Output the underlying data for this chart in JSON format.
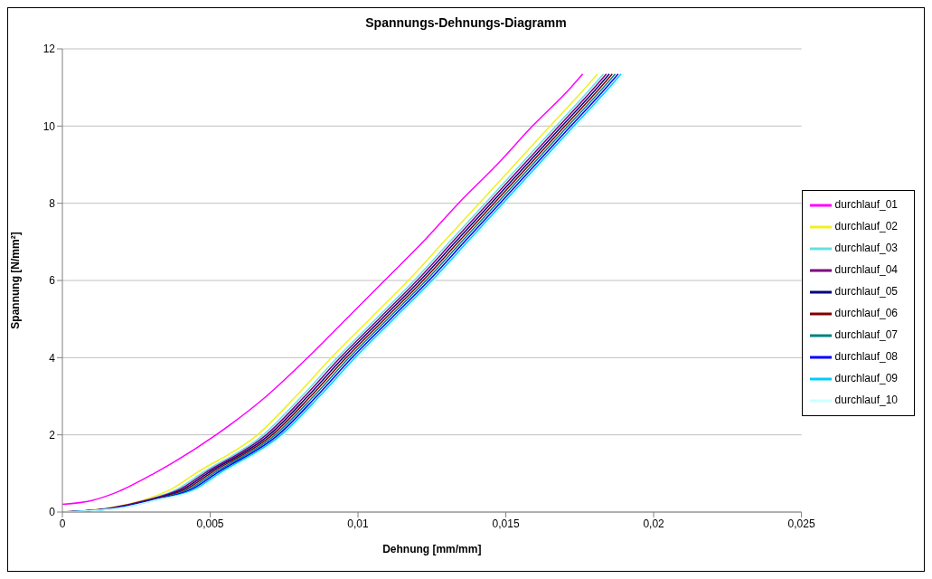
{
  "chart_data": {
    "type": "line",
    "title": "Spannungs-Dehnungs-Diagramm",
    "xlabel": "Dehnung [mm/mm]",
    "ylabel": "Spannung [N/mm²]",
    "xlim": [
      0,
      0.025
    ],
    "xticks": [
      0,
      {
        "value": 0.005,
        "label": "0,005"
      },
      {
        "value": 0.01,
        "label": "0,01"
      },
      {
        "value": 0.015,
        "label": "0,015"
      },
      {
        "value": 0.02,
        "label": "0,02"
      },
      {
        "value": 0.025,
        "label": "0,025"
      }
    ],
    "ylim": [
      0,
      12
    ],
    "yticks": [
      0,
      2,
      4,
      6,
      8,
      10,
      12
    ],
    "grid": "y",
    "legend": "right",
    "marker": "none",
    "line_style": "solid",
    "series": [
      {
        "name": "durchlauf_01",
        "color": "#ff00ff",
        "x": [
          0,
          0.001,
          0.0018,
          0.0031,
          0.0052,
          0.0069,
          0.0083,
          0.0096,
          0.0109,
          0.0122,
          0.0134,
          0.0147,
          0.0159,
          0.0172,
          0.0176
        ],
        "values": [
          0.2,
          0.3,
          0.5,
          1,
          2,
          3,
          4,
          5,
          6,
          7,
          8,
          9,
          10,
          11,
          11.35
        ]
      },
      {
        "name": "durchlauf_02",
        "color": "#f0f020",
        "x": [
          0,
          0.0015,
          0.0027,
          0.0037,
          0.0045,
          0.0066,
          0.0079,
          0.0091,
          0.0104,
          0.0117,
          0.0129,
          0.0141,
          0.0153,
          0.0165,
          0.0177,
          0.0181
        ],
        "values": [
          0,
          0.1,
          0.3,
          0.6,
          1,
          2,
          3,
          4,
          5,
          6,
          7,
          8,
          9,
          10,
          11,
          11.35
        ]
      },
      {
        "name": "durchlauf_03",
        "color": "#66e0e0",
        "x": [
          0,
          0.0016,
          0.0028,
          0.0039,
          0.0047,
          0.0068,
          0.0081,
          0.0093,
          0.0106,
          0.0119,
          0.0131,
          0.0143,
          0.0155,
          0.0167,
          0.0179,
          0.0183
        ],
        "values": [
          0,
          0.1,
          0.3,
          0.6,
          1,
          2,
          3,
          4,
          5,
          6,
          7,
          8,
          9,
          10,
          11,
          11.35
        ]
      },
      {
        "name": "durchlauf_04",
        "color": "#800080",
        "x": [
          0,
          0.0016,
          0.0028,
          0.004,
          0.0048,
          0.0069,
          0.0082,
          0.0094,
          0.0107,
          0.012,
          0.0132,
          0.0144,
          0.0156,
          0.0168,
          0.018,
          0.0184
        ],
        "values": [
          0,
          0.1,
          0.3,
          0.6,
          1,
          2,
          3,
          4,
          5,
          6,
          7,
          8,
          9,
          10,
          11,
          11.35
        ]
      },
      {
        "name": "durchlauf_05",
        "color": "#000080",
        "x": [
          0,
          0.0017,
          0.0029,
          0.0041,
          0.0049,
          0.007,
          0.0083,
          0.0095,
          0.0108,
          0.0121,
          0.0133,
          0.0145,
          0.0157,
          0.0169,
          0.0181,
          0.0185
        ],
        "values": [
          0,
          0.1,
          0.3,
          0.6,
          1,
          2,
          3,
          4,
          5,
          6,
          7,
          8,
          9,
          10,
          11,
          11.35
        ]
      },
      {
        "name": "durchlauf_06",
        "color": "#800000",
        "x": [
          0,
          0.0017,
          0.0029,
          0.0042,
          0.005,
          0.0071,
          0.0084,
          0.0096,
          0.0109,
          0.0122,
          0.0134,
          0.0146,
          0.0158,
          0.017,
          0.0182,
          0.0186
        ],
        "values": [
          0,
          0.1,
          0.3,
          0.6,
          1,
          2,
          3,
          4,
          5,
          6,
          7,
          8,
          9,
          10,
          11,
          11.35
        ]
      },
      {
        "name": "durchlauf_07",
        "color": "#008080",
        "x": [
          0,
          0.0018,
          0.003,
          0.0043,
          0.0051,
          0.0072,
          0.0085,
          0.0097,
          0.011,
          0.0123,
          0.0135,
          0.0147,
          0.0159,
          0.0171,
          0.0183,
          0.0187
        ],
        "values": [
          0,
          0.1,
          0.3,
          0.6,
          1,
          2,
          3,
          4,
          5,
          6,
          7,
          8,
          9,
          10,
          11,
          11.35
        ]
      },
      {
        "name": "durchlauf_08",
        "color": "#0000ff",
        "x": [
          0,
          0.0018,
          0.003,
          0.0044,
          0.0052,
          0.0073,
          0.0086,
          0.0098,
          0.0111,
          0.0124,
          0.0136,
          0.0148,
          0.016,
          0.0172,
          0.0184,
          0.0188
        ],
        "values": [
          0,
          0.1,
          0.3,
          0.6,
          1,
          2,
          3,
          4,
          5,
          6,
          7,
          8,
          9,
          10,
          11,
          11.35
        ]
      },
      {
        "name": "durchlauf_09",
        "color": "#00ccff",
        "x": [
          0,
          0.0019,
          0.0031,
          0.0045,
          0.0053,
          0.0074,
          0.0087,
          0.0099,
          0.0112,
          0.0125,
          0.0137,
          0.0149,
          0.0161,
          0.0173,
          0.0185,
          0.0189
        ],
        "values": [
          0,
          0.1,
          0.3,
          0.6,
          1,
          2,
          3,
          4,
          5,
          6,
          7,
          8,
          9,
          10,
          11,
          11.35
        ]
      },
      {
        "name": "durchlauf_10",
        "color": "#ccffff",
        "x": [
          0,
          0.0019,
          0.0031,
          0.0046,
          0.0054,
          0.0075,
          0.0088,
          0.01,
          0.0113,
          0.0126,
          0.0138,
          0.015,
          0.0162,
          0.0174,
          0.0186,
          0.019
        ],
        "values": [
          0,
          0.1,
          0.3,
          0.6,
          1,
          2,
          3,
          4,
          5,
          6,
          7,
          8,
          9,
          10,
          11,
          11.35
        ]
      }
    ]
  }
}
